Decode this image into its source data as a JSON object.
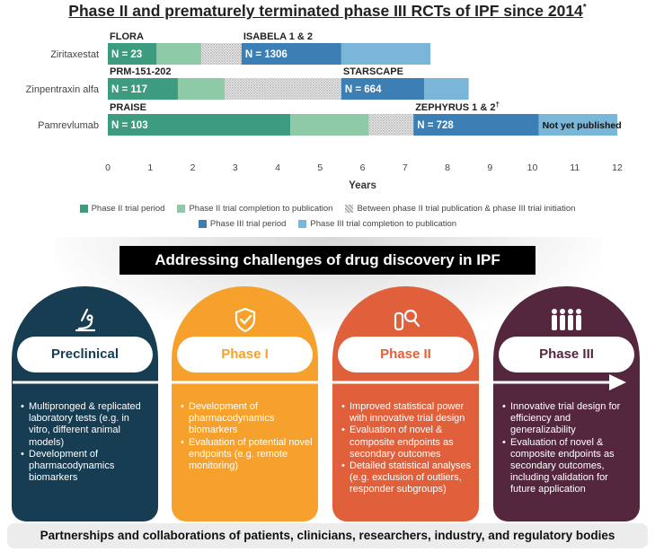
{
  "title": {
    "text": "Phase II and prematurely terminated phase III RCTs of IPF since 2014",
    "marker": "*"
  },
  "chart_data": {
    "type": "bar",
    "orientation": "horizontal",
    "stacked": true,
    "xlabel": "Years",
    "xlim": [
      0,
      12
    ],
    "xticks": [
      0,
      1,
      2,
      3,
      4,
      5,
      6,
      7,
      8,
      9,
      10,
      11,
      12
    ],
    "categories": [
      "Ziritaxestat",
      "Zinpentraxin alfa",
      "Pamrevlumab"
    ],
    "colors": {
      "p2_period": "#3d9b7f",
      "p2_pub": "#8fcaa6",
      "between": "#d9d9d9",
      "p3_period": "#3c7fb4",
      "p3_pub": "#7ab6d8"
    },
    "rows": [
      {
        "drug": "Ziritaxestat",
        "segments": [
          {
            "type": "p2_period",
            "start": 0,
            "end": 1.15,
            "label": "N = 23"
          },
          {
            "type": "p2_pub",
            "start": 1.15,
            "end": 2.2
          },
          {
            "type": "between",
            "start": 2.2,
            "end": 3.15
          },
          {
            "type": "p3_period",
            "start": 3.15,
            "end": 5.5,
            "label": "N = 1306"
          },
          {
            "type": "p3_pub",
            "start": 5.5,
            "end": 7.6
          }
        ],
        "trials": [
          {
            "name": "FLORA",
            "x": 0,
            "sup": ""
          },
          {
            "name": "ISABELA 1 & 2",
            "x": 3.15,
            "sup": ""
          }
        ]
      },
      {
        "drug": "Zinpentraxin alfa",
        "segments": [
          {
            "type": "p2_period",
            "start": 0,
            "end": 1.65,
            "label": "N = 117"
          },
          {
            "type": "p2_pub",
            "start": 1.65,
            "end": 2.75
          },
          {
            "type": "between",
            "start": 2.75,
            "end": 5.5
          },
          {
            "type": "p3_period",
            "start": 5.5,
            "end": 7.45,
            "label": "N = 664"
          },
          {
            "type": "p3_pub",
            "start": 7.45,
            "end": 8.5
          }
        ],
        "trials": [
          {
            "name": "PRM-151-202",
            "x": 0,
            "sup": ""
          },
          {
            "name": "STARSCAPE",
            "x": 5.5,
            "sup": ""
          }
        ]
      },
      {
        "drug": "Pamrevlumab",
        "segments": [
          {
            "type": "p2_period",
            "start": 0,
            "end": 4.3,
            "label": "N = 103"
          },
          {
            "type": "p2_pub",
            "start": 4.3,
            "end": 6.15
          },
          {
            "type": "between",
            "start": 6.15,
            "end": 7.2
          },
          {
            "type": "p3_period",
            "start": 7.2,
            "end": 10.15,
            "label": "N = 728"
          },
          {
            "type": "p3_pub",
            "start": 10.15,
            "end": 12,
            "label": "Not yet published"
          }
        ],
        "trials": [
          {
            "name": "PRAISE",
            "x": 0,
            "sup": ""
          },
          {
            "name": "ZEPHYRUS 1 & 2",
            "x": 7.2,
            "sup": "†"
          }
        ]
      }
    ],
    "legend": [
      {
        "key": "p2_period",
        "label": "Phase II trial period"
      },
      {
        "key": "p2_pub",
        "label": "Phase II trial completion to publication"
      },
      {
        "key": "between",
        "label": "Between phase II trial publication & phase III trial initiation"
      },
      {
        "key": "p3_period",
        "label": "Phase III trial period"
      },
      {
        "key": "p3_pub",
        "label": "Phase III trial completion to publication"
      }
    ]
  },
  "banner": "Addressing challenges of drug discovery in IPF",
  "phases": [
    {
      "title": "Preclinical",
      "icon": "microscope-icon",
      "color": "#173d53",
      "text_color": "#173d53",
      "bullets": [
        "Multipronged & replicated laboratory tests (e.g. in vitro, different animal models)",
        "Development of pharmacodynamics biomarkers"
      ]
    },
    {
      "title": "Phase I",
      "icon": "shield-check-icon",
      "color": "#f5a12b",
      "text_color": "#f5a12b",
      "bullets": [
        "Development of pharmacodynamics biomarkers",
        "Evaluation of potential novel endpoints (e.g. remote monitoring)"
      ]
    },
    {
      "title": "Phase II",
      "icon": "test-tube-search-icon",
      "color": "#e0603c",
      "text_color": "#e0603c",
      "bullets": [
        "Improved statistical power with innovative trial design",
        "Evaluation of novel & composite endpoints as secondary outcomes",
        "Detailed statistical analyses (e.g. exclusion of outliers, responder subgroups)"
      ]
    },
    {
      "title": "Phase III",
      "icon": "people-group-icon",
      "color": "#55273f",
      "text_color": "#55273f",
      "bullets": [
        "Innovative trial design for efficiency and generalizability",
        "Evaluation of novel & composite endpoints as secondary outcomes, including validation for future application"
      ]
    }
  ],
  "footer": "Partnerships and collaborations of patients, clinicians, researchers, industry, and regulatory bodies"
}
